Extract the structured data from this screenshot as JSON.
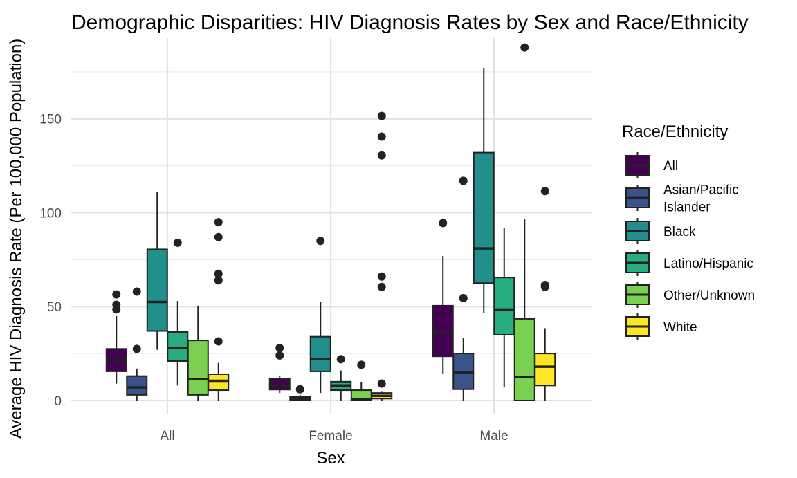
{
  "chart_data": {
    "type": "boxplot",
    "title": "Demographic Disparities: HIV Diagnosis Rates by Sex and Race/Ethnicity",
    "xlabel": "Sex",
    "ylabel": "Average HIV Diagnosis Rate (Per 100,000 Population)",
    "ylim": [
      -7,
      193
    ],
    "yticks": [
      0,
      50,
      100,
      150
    ],
    "categories": [
      "All",
      "Female",
      "Male"
    ],
    "legend": {
      "title": "Race/Ethnicity",
      "position": "right"
    },
    "grid": true,
    "series": [
      {
        "name": "All",
        "legend_label": [
          "All"
        ],
        "color": "#440154",
        "boxes": [
          {
            "whisker_low": 9,
            "q1": 15.5,
            "median": 21.5,
            "q3": 27.5,
            "whisker_high": 45,
            "outliers": [
              48.5,
              51,
              56.5
            ]
          },
          {
            "whisker_low": 4,
            "q1": 5.8,
            "median": 8,
            "q3": 11.5,
            "whisker_high": 13,
            "outliers": [
              24,
              28
            ]
          },
          {
            "whisker_low": 14,
            "q1": 23.5,
            "median": 36,
            "q3": 50.5,
            "whisker_high": 77,
            "outliers": [
              94.5
            ]
          }
        ]
      },
      {
        "name": "Asian/Pacific Islander",
        "legend_label": [
          "Asian/Pacific",
          "Islander"
        ],
        "color": "#3b528b",
        "boxes": [
          {
            "whisker_low": 0,
            "q1": 3,
            "median": 7,
            "q3": 13,
            "whisker_high": 17,
            "outliers": [
              27.5,
              58
            ]
          },
          {
            "whisker_low": 0,
            "q1": 0,
            "median": 1,
            "q3": 2,
            "whisker_high": 3,
            "outliers": [
              6
            ]
          },
          {
            "whisker_low": 0,
            "q1": 6,
            "median": 15,
            "q3": 25,
            "whisker_high": 33.5,
            "outliers": [
              54.5,
              117
            ]
          }
        ]
      },
      {
        "name": "Black",
        "legend_label": [
          "Black"
        ],
        "color": "#21908c",
        "boxes": [
          {
            "whisker_low": 27,
            "q1": 37,
            "median": 52.5,
            "q3": 80.5,
            "whisker_high": 111,
            "outliers": []
          },
          {
            "whisker_low": 4,
            "q1": 15.5,
            "median": 22,
            "q3": 34,
            "whisker_high": 52.5,
            "outliers": [
              85
            ]
          },
          {
            "whisker_low": 46.5,
            "q1": 62.5,
            "median": 81,
            "q3": 132,
            "whisker_high": 177,
            "outliers": []
          }
        ]
      },
      {
        "name": "Latino/Hispanic",
        "legend_label": [
          "Latino/Hispanic"
        ],
        "color": "#27ad81",
        "boxes": [
          {
            "whisker_low": 8,
            "q1": 21,
            "median": 28,
            "q3": 36.5,
            "whisker_high": 53,
            "outliers": [
              84
            ]
          },
          {
            "whisker_low": 0,
            "q1": 5.5,
            "median": 8,
            "q3": 10,
            "whisker_high": 16,
            "outliers": [
              22
            ]
          },
          {
            "whisker_low": 7,
            "q1": 35,
            "median": 48.5,
            "q3": 65.5,
            "whisker_high": 92,
            "outliers": []
          }
        ]
      },
      {
        "name": "Other/Unknown",
        "legend_label": [
          "Other/Unknown"
        ],
        "color": "#7ad151",
        "boxes": [
          {
            "whisker_low": 0,
            "q1": 3,
            "median": 11.5,
            "q3": 32,
            "whisker_high": 50.5,
            "outliers": []
          },
          {
            "whisker_low": 0,
            "q1": 0,
            "median": 0.5,
            "q3": 5.5,
            "whisker_high": 10,
            "outliers": [
              19
            ]
          },
          {
            "whisker_low": 0,
            "q1": 0,
            "median": 12.5,
            "q3": 43.5,
            "whisker_high": 96.5,
            "outliers": [
              188
            ]
          }
        ]
      },
      {
        "name": "White",
        "legend_label": [
          "White"
        ],
        "color": "#fde725",
        "boxes": [
          {
            "whisker_low": 0,
            "q1": 5.5,
            "median": 10.5,
            "q3": 14,
            "whisker_high": 20,
            "outliers": [
              31.5,
              64,
              67.5,
              87,
              95
            ]
          },
          {
            "whisker_low": 0,
            "q1": 1,
            "median": 2.5,
            "q3": 4,
            "whisker_high": 5,
            "outliers": [
              9,
              60.5,
              66,
              130.5,
              140.5,
              151.5
            ]
          },
          {
            "whisker_low": 0,
            "q1": 8,
            "median": 18,
            "q3": 25,
            "whisker_high": 38.5,
            "outliers": [
              60.5,
              61.5,
              111.5
            ]
          }
        ]
      }
    ]
  }
}
